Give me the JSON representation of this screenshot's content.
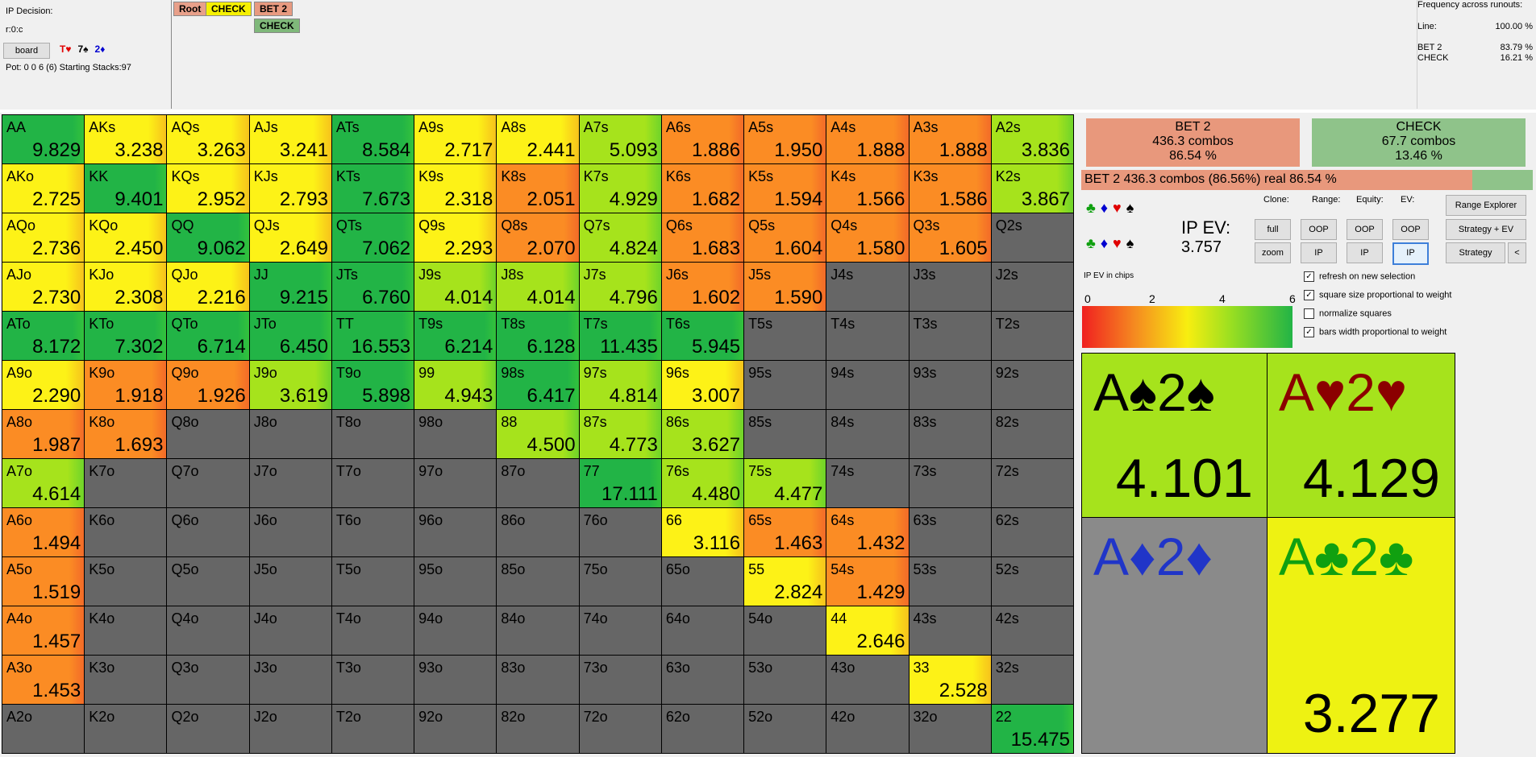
{
  "header": {
    "decision": "IP Decision:",
    "line": "r:0:c",
    "board_button": "board",
    "board_cards": [
      {
        "text": "T♥",
        "color": "#e00000"
      },
      {
        "text": "7♠",
        "color": "#000000"
      },
      {
        "text": "2♦",
        "color": "#0000d0"
      }
    ],
    "pot": "Pot: 0 0 6 (6) Starting Stacks:97"
  },
  "tree": {
    "nodes": [
      {
        "label": "Root",
        "bg": "#e8a08a"
      },
      {
        "label": "CHECK",
        "bg": "#f5f000"
      },
      {
        "label": "BET 2",
        "bg": "#e89a80"
      },
      {
        "label": "CHECK",
        "bg": "#7fb87a"
      }
    ]
  },
  "frequency": {
    "title": "Frequency across runouts:",
    "rows": [
      {
        "label": "Line:",
        "value": "100.00 %"
      },
      {
        "label": "BET 2",
        "value": "83.79 %"
      },
      {
        "label": "CHECK",
        "value": "16.21 %"
      }
    ]
  },
  "colors": {
    "red": "#f0412b",
    "orange": "#fb8c24",
    "yellow": "#fdf217",
    "lime": "#a6e31c",
    "green": "#22b446",
    "gray": "#666666"
  },
  "grid": [
    [
      "AA|9.829|green",
      "AKs|3.238|yellow",
      "AQs|3.263|yellow",
      "AJs|3.241|yellow",
      "ATs|8.584|green",
      "A9s|2.717|yellow",
      "A8s|2.441|yellow",
      "A7s|5.093|lime",
      "A6s|1.886|orange",
      "A5s|1.950|orange",
      "A4s|1.888|orange",
      "A3s|1.888|orange",
      "A2s|3.836|lime"
    ],
    [
      "AKo|2.725|yellow",
      "KK|9.401|green",
      "KQs|2.952|yellow",
      "KJs|2.793|yellow",
      "KTs|7.673|green",
      "K9s|2.318|yellow",
      "K8s|2.051|orange",
      "K7s|4.929|lime",
      "K6s|1.682|orange",
      "K5s|1.594|orange",
      "K4s|1.566|orange",
      "K3s|1.586|orange",
      "K2s|3.867|lime"
    ],
    [
      "AQo|2.736|yellow",
      "KQo|2.450|yellow",
      "QQ|9.062|green",
      "QJs|2.649|yellow",
      "QTs|7.062|green",
      "Q9s|2.293|yellow",
      "Q8s|2.070|orange",
      "Q7s|4.824|lime",
      "Q6s|1.683|orange",
      "Q5s|1.604|orange",
      "Q4s|1.580|orange",
      "Q3s|1.605|orange",
      "Q2s||gray"
    ],
    [
      "AJo|2.730|yellow",
      "KJo|2.308|yellow",
      "QJo|2.216|yellow",
      "JJ|9.215|green",
      "JTs|6.760|green",
      "J9s|4.014|lime",
      "J8s|4.014|lime",
      "J7s|4.796|lime",
      "J6s|1.602|orange",
      "J5s|1.590|orange",
      "J4s||gray",
      "J3s||gray",
      "J2s||gray"
    ],
    [
      "ATo|8.172|green",
      "KTo|7.302|green",
      "QTo|6.714|green",
      "JTo|6.450|green",
      "TT|16.553|green",
      "T9s|6.214|green",
      "T8s|6.128|green",
      "T7s|11.435|green",
      "T6s|5.945|green",
      "T5s||gray",
      "T4s||gray",
      "T3s||gray",
      "T2s||gray"
    ],
    [
      "A9o|2.290|yellow",
      "K9o|1.918|orange",
      "Q9o|1.926|orange",
      "J9o|3.619|lime",
      "T9o|5.898|green",
      "99|4.943|lime",
      "98s|6.417|green",
      "97s|4.814|lime",
      "96s|3.007|yellow",
      "95s||gray",
      "94s||gray",
      "93s||gray",
      "92s||gray"
    ],
    [
      "A8o|1.987|orange",
      "K8o|1.693|orange",
      "Q8o||gray",
      "J8o||gray",
      "T8o||gray",
      "98o||gray",
      "88|4.500|lime",
      "87s|4.773|lime",
      "86s|3.627|lime",
      "85s||gray",
      "84s||gray",
      "83s||gray",
      "82s||gray"
    ],
    [
      "A7o|4.614|lime",
      "K7o||gray",
      "Q7o||gray",
      "J7o||gray",
      "T7o||gray",
      "97o||gray",
      "87o||gray",
      "77|17.111|green",
      "76s|4.480|lime",
      "75s|4.477|lime",
      "74s||gray",
      "73s||gray",
      "72s||gray"
    ],
    [
      "A6o|1.494|orange",
      "K6o||gray",
      "Q6o||gray",
      "J6o||gray",
      "T6o||gray",
      "96o||gray",
      "86o||gray",
      "76o||gray",
      "66|3.116|yellow",
      "65s|1.463|orange",
      "64s|1.432|orange",
      "63s||gray",
      "62s||gray"
    ],
    [
      "A5o|1.519|orange",
      "K5o||gray",
      "Q5o||gray",
      "J5o||gray",
      "T5o||gray",
      "95o||gray",
      "85o||gray",
      "75o||gray",
      "65o||gray",
      "55|2.824|yellow",
      "54s|1.429|orange",
      "53s||gray",
      "52s||gray"
    ],
    [
      "A4o|1.457|orange",
      "K4o||gray",
      "Q4o||gray",
      "J4o||gray",
      "T4o||gray",
      "94o||gray",
      "84o||gray",
      "74o||gray",
      "64o||gray",
      "54o||gray",
      "44|2.646|yellow",
      "43s||gray",
      "42s||gray"
    ],
    [
      "A3o|1.453|orange",
      "K3o||gray",
      "Q3o||gray",
      "J3o||gray",
      "T3o||gray",
      "93o||gray",
      "83o||gray",
      "73o||gray",
      "63o||gray",
      "53o||gray",
      "43o||gray",
      "33|2.528|yellow",
      "32s||gray"
    ],
    [
      "A2o||gray",
      "K2o||gray",
      "Q2o||gray",
      "J2o||gray",
      "T2o||gray",
      "92o||gray",
      "82o||gray",
      "72o||gray",
      "62o||gray",
      "52o||gray",
      "42o||gray",
      "32o||gray",
      "22|15.475|green"
    ]
  ],
  "panel": {
    "bet": {
      "name": "BET 2",
      "combos": "436.3 combos",
      "pct": "86.54 %"
    },
    "check": {
      "name": "CHECK",
      "combos": "67.7 combos",
      "pct": "13.46 %"
    },
    "bar_text": "BET 2  436.3 combos (86.56%) real  86.54 %",
    "bet_fraction": 0.8654,
    "suits_row": [
      "♣",
      "♦",
      "♥",
      "♠"
    ],
    "ev_title": "IP EV:",
    "ev_value": "3.757",
    "col_heads": {
      "clone": "Clone:",
      "range": "Range:",
      "equity": "Equity:",
      "ev": "EV:"
    },
    "buttons": {
      "full": "full",
      "zoom": "zoom",
      "range_oop": "OOP",
      "range_ip": "IP",
      "eq_oop": "OOP",
      "eq_ip": "IP",
      "ev_oop": "OOP",
      "ev_ip": "IP",
      "range_explorer": "Range Explorer",
      "strategy_ev": "Strategy + EV",
      "strategy": "Strategy",
      "back": "<"
    },
    "legend_title": "IP EV in chips",
    "legend_ticks": [
      "0",
      "2",
      "4",
      "6"
    ],
    "checkboxes": [
      {
        "label": "refresh on new selection",
        "checked": true
      },
      {
        "label": "square size proportional to weight",
        "checked": true
      },
      {
        "label": "normalize squares",
        "checked": false
      },
      {
        "label": "bars width proportional to weight",
        "checked": true
      }
    ],
    "combos": [
      {
        "rank1": "A",
        "rank2": "2",
        "suit": "♠",
        "suit_color": "#000000",
        "ev": "4.101",
        "bg": "#a6e31c"
      },
      {
        "rank1": "A",
        "rank2": "2",
        "suit": "♥",
        "suit_color": "#8b0000",
        "ev": "4.129",
        "bg": "#a6e31c"
      },
      {
        "rank1": "A",
        "rank2": "2",
        "suit": "♦",
        "suit_color": "#2035c8",
        "ev": "",
        "bg": "#8a8a8a"
      },
      {
        "rank1": "A",
        "rank2": "2",
        "suit": "♣",
        "suit_color": "#10a010",
        "ev": "3.277",
        "bg": "#eef212"
      }
    ]
  }
}
